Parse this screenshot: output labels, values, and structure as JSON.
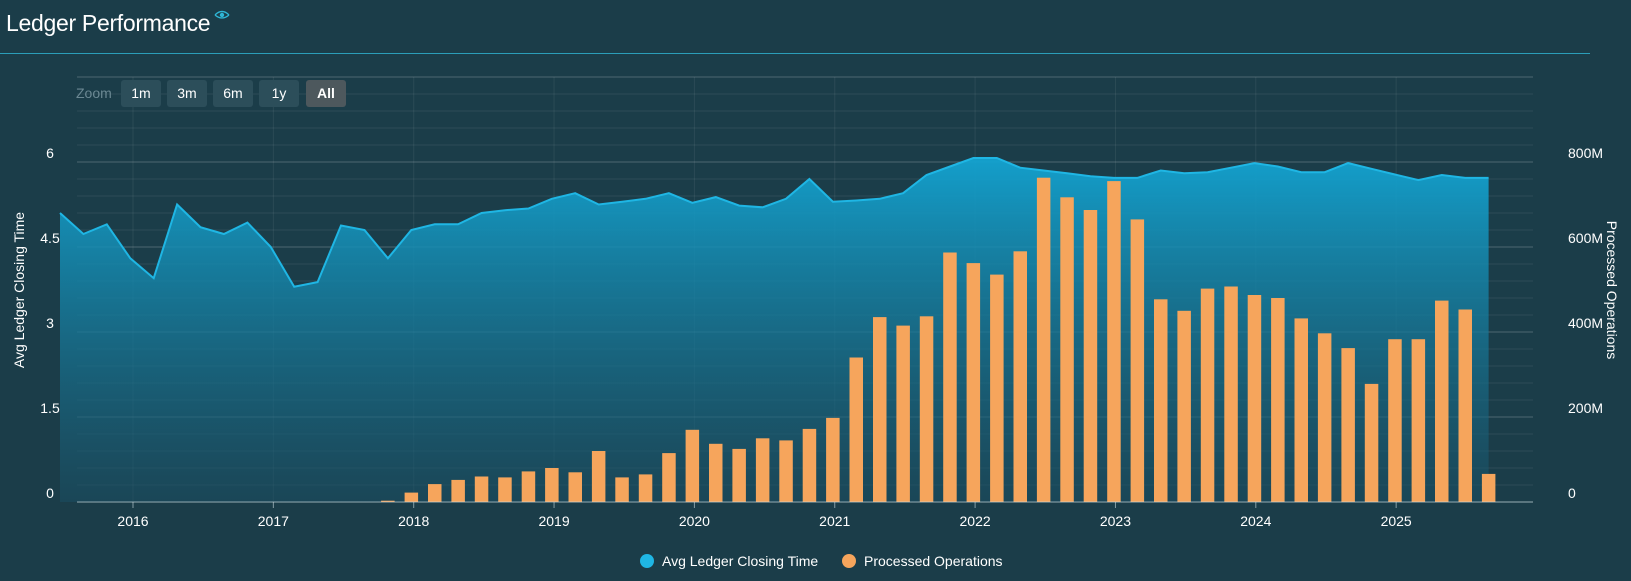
{
  "header": {
    "title": "Ledger Performance",
    "icon": "eye-icon"
  },
  "zoom": {
    "label": "Zoom",
    "buttons": [
      {
        "label": "1m",
        "active": false
      },
      {
        "label": "3m",
        "active": false
      },
      {
        "label": "6m",
        "active": false
      },
      {
        "label": "1y",
        "active": false
      },
      {
        "label": "All",
        "active": true
      }
    ]
  },
  "colors": {
    "background": "#1b3d49",
    "line": "#1fb6e4",
    "bar": "#f6a55c",
    "grid": "#ffffff"
  },
  "chart_data": {
    "type": "bar",
    "x_ticks": [
      "2016",
      "2017",
      "2018",
      "2019",
      "2020",
      "2021",
      "2022",
      "2023",
      "2024",
      "2025"
    ],
    "y_left": {
      "label": "Avg Ledger Closing Time",
      "ticks": [
        "0",
        "1.5",
        "3",
        "4.5",
        "6"
      ],
      "range": [
        0,
        7.5
      ]
    },
    "y_right": {
      "label": "Processed Operations",
      "ticks": [
        "0",
        "200M",
        "400M",
        "600M",
        "800M"
      ],
      "range_millions": [
        0,
        1000
      ]
    },
    "legend_position": "bottom-center",
    "series": [
      {
        "name": "Avg Ledger Closing Time",
        "type": "area",
        "axis": "left",
        "values": [
          5.1,
          4.73,
          4.9,
          4.3,
          3.95,
          5.25,
          4.85,
          4.73,
          4.93,
          4.5,
          3.8,
          3.88,
          4.88,
          4.8,
          4.3,
          4.8,
          4.9,
          4.9,
          5.1,
          5.15,
          5.18,
          5.35,
          5.45,
          5.25,
          5.3,
          5.35,
          5.45,
          5.28,
          5.38,
          5.23,
          5.2,
          5.35,
          5.7,
          5.3,
          5.32,
          5.35,
          5.45,
          5.77,
          5.92,
          6.07,
          6.07,
          5.9,
          5.85,
          5.8,
          5.75,
          5.72,
          5.72,
          5.85,
          5.8,
          5.82,
          5.9,
          5.98,
          5.92,
          5.82,
          5.82,
          5.98,
          5.88,
          5.78,
          5.68,
          5.77,
          5.72,
          5.72
        ]
      },
      {
        "name": "Processed Operations",
        "type": "bar",
        "axis": "right",
        "values_millions": [
          0,
          0,
          0,
          0,
          0,
          0,
          0,
          0,
          0,
          0,
          0,
          0,
          0,
          0,
          3,
          22,
          42,
          52,
          60,
          58,
          72,
          80,
          70,
          120,
          58,
          65,
          115,
          170,
          137,
          125,
          150,
          145,
          172,
          198,
          340,
          435,
          415,
          437,
          587,
          562,
          535,
          590,
          763,
          717,
          687,
          755,
          665,
          477,
          450,
          502,
          507,
          487,
          480,
          432,
          397,
          362,
          278,
          383,
          383,
          474,
          453,
          66
        ]
      }
    ]
  }
}
